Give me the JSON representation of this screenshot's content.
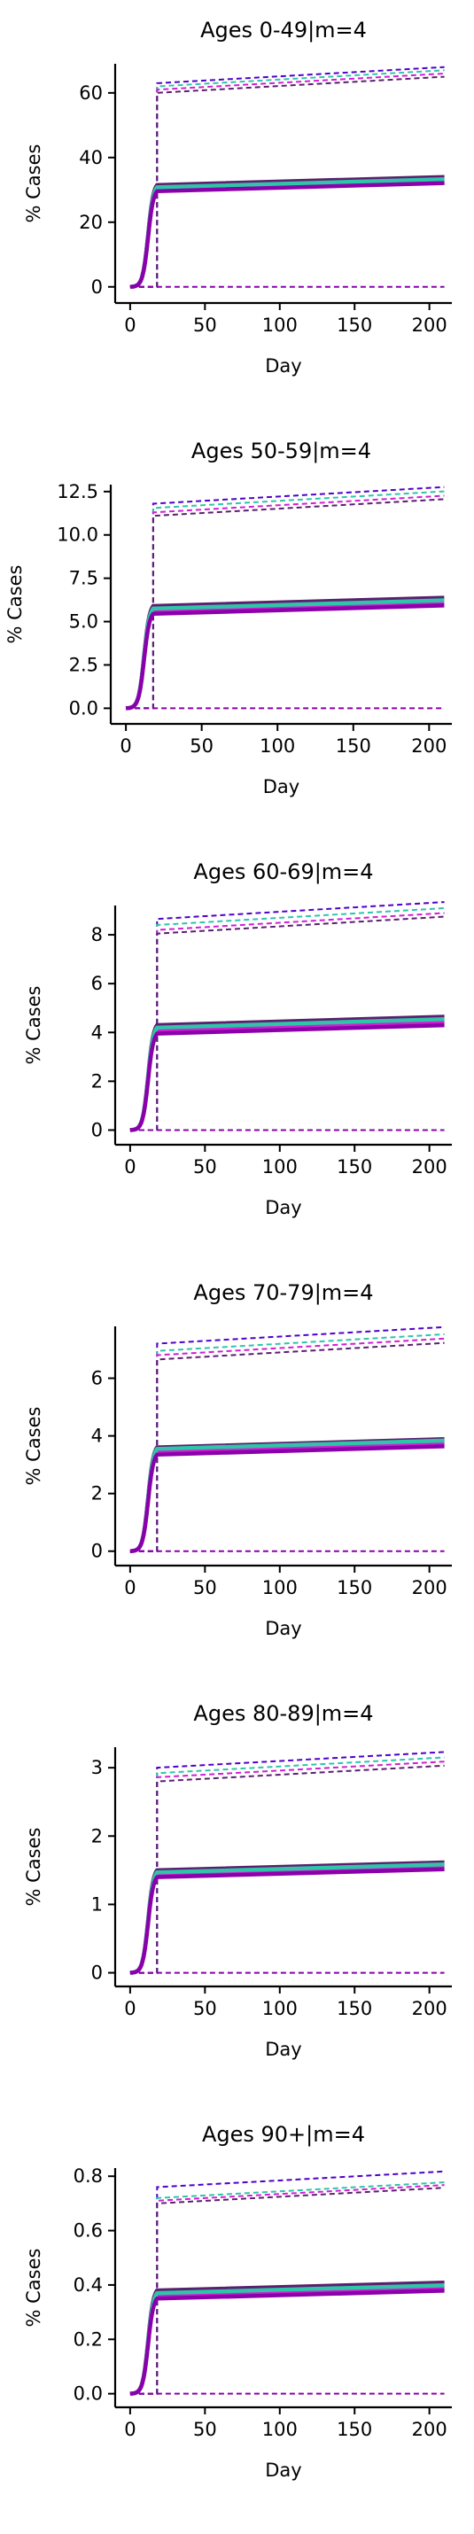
{
  "colors": {
    "purple_dark": "#5a1f6e",
    "magenta": "#d21ed2",
    "teal": "#2ec5a8",
    "violet": "#8a00aa",
    "indigo": "#5000c8",
    "axis": "#000000"
  },
  "chart_data": [
    {
      "type": "line",
      "title": "Ages 0-49|m=4",
      "xlabel": "Day",
      "ylabel": "% Cases",
      "xlim": [
        -10,
        215
      ],
      "ylim": [
        -5,
        69
      ],
      "xticks": [
        0,
        50,
        100,
        150,
        200
      ],
      "yticks": [
        0,
        20,
        40,
        60
      ],
      "ytick_labels": [
        "0",
        "20",
        "40",
        "60"
      ],
      "xtick_labels": [
        "0",
        "50",
        "100",
        "150",
        "200"
      ],
      "plateau": [
        31.5,
        30,
        30.8,
        29.6
      ],
      "upper": [
        63,
        62,
        61,
        60
      ],
      "end_slope": 0.013,
      "grid": false,
      "legend": "none"
    },
    {
      "type": "line",
      "title": "Ages 50-59|m=4",
      "xlabel": "Day",
      "ylabel": "% Cases",
      "xlim": [
        -10,
        215
      ],
      "ylim": [
        -0.9,
        12.9
      ],
      "xticks": [
        0,
        50,
        100,
        150,
        200
      ],
      "yticks": [
        0,
        2.5,
        5,
        7.5,
        10,
        12.5
      ],
      "ytick_labels": [
        "0.0",
        "2.5",
        "5.0",
        "7.5",
        "10.0",
        "12.5"
      ],
      "xtick_labels": [
        "0",
        "50",
        "100",
        "150",
        "200"
      ],
      "plateau": [
        5.9,
        5.6,
        5.75,
        5.45
      ],
      "upper": [
        11.8,
        11.55,
        11.3,
        11.1
      ],
      "end_slope": 0.0025,
      "grid": false,
      "legend": "none"
    },
    {
      "type": "line",
      "title": "Ages 60-69|m=4",
      "xlabel": "Day",
      "ylabel": "% Cases",
      "xlim": [
        -10,
        215
      ],
      "ylim": [
        -0.6,
        9.2
      ],
      "xticks": [
        0,
        50,
        100,
        150,
        200
      ],
      "yticks": [
        0,
        2,
        4,
        6,
        8
      ],
      "ytick_labels": [
        "0",
        "2",
        "4",
        "6",
        "8"
      ],
      "xtick_labels": [
        "0",
        "50",
        "100",
        "150",
        "200"
      ],
      "plateau": [
        4.3,
        4.1,
        4.2,
        3.95
      ],
      "upper": [
        8.65,
        8.4,
        8.2,
        8.05
      ],
      "end_slope": 0.0018,
      "grid": false,
      "legend": "none"
    },
    {
      "type": "line",
      "title": "Ages 70-79|m=4",
      "xlabel": "Day",
      "ylabel": "% Cases",
      "xlim": [
        -10,
        215
      ],
      "ylim": [
        -0.5,
        7.8
      ],
      "xticks": [
        0,
        50,
        100,
        150,
        200
      ],
      "yticks": [
        0,
        2,
        4,
        6
      ],
      "ytick_labels": [
        "0",
        "2",
        "4",
        "6"
      ],
      "xtick_labels": [
        "0",
        "50",
        "100",
        "150",
        "200"
      ],
      "plateau": [
        3.6,
        3.45,
        3.55,
        3.35
      ],
      "upper": [
        7.2,
        6.95,
        6.8,
        6.65
      ],
      "end_slope": 0.0015,
      "grid": false,
      "legend": "none"
    },
    {
      "type": "line",
      "title": "Ages 80-89|m=4",
      "xlabel": "Day",
      "ylabel": "% Cases",
      "xlim": [
        -10,
        215
      ],
      "ylim": [
        -0.2,
        3.3
      ],
      "xticks": [
        0,
        50,
        100,
        150,
        200
      ],
      "yticks": [
        0,
        1,
        2,
        3
      ],
      "ytick_labels": [
        "0",
        "1",
        "2",
        "3"
      ],
      "xtick_labels": [
        "0",
        "50",
        "100",
        "150",
        "200"
      ],
      "plateau": [
        1.5,
        1.44,
        1.47,
        1.4
      ],
      "upper": [
        3.0,
        2.92,
        2.86,
        2.8
      ],
      "end_slope": 0.0006,
      "grid": false,
      "legend": "none"
    },
    {
      "type": "line",
      "title": "Ages 90+|m=4",
      "xlabel": "Day",
      "ylabel": "% Cases",
      "xlim": [
        -10,
        215
      ],
      "ylim": [
        -0.05,
        0.83
      ],
      "xticks": [
        0,
        50,
        100,
        150,
        200
      ],
      "yticks": [
        0,
        0.2,
        0.4,
        0.6,
        0.8
      ],
      "ytick_labels": [
        "0.0",
        "0.2",
        "0.4",
        "0.6",
        "0.8"
      ],
      "xtick_labels": [
        "0",
        "50",
        "100",
        "150",
        "200"
      ],
      "plateau": [
        0.38,
        0.36,
        0.37,
        0.35
      ],
      "upper": [
        0.76,
        0.72,
        0.71,
        0.7
      ],
      "end_slope": 0.00015,
      "grid": false,
      "legend": "none"
    }
  ]
}
